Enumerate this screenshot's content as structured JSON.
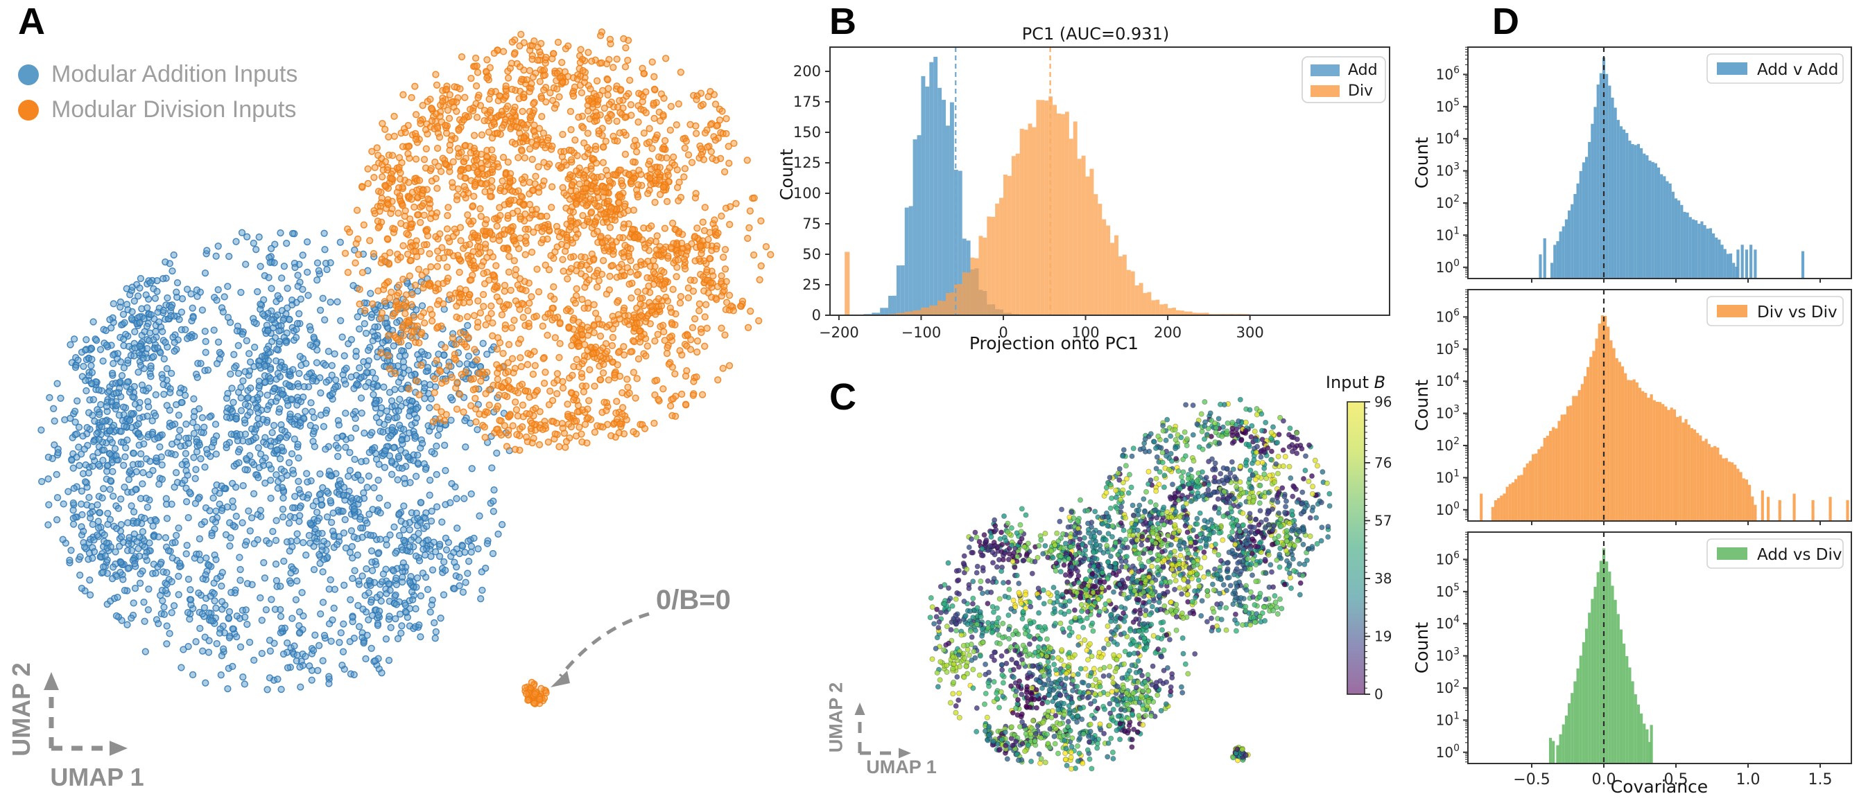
{
  "chart_data": [
    {
      "id": "A",
      "panel_label": "A",
      "type": "scatter",
      "xlabel": "UMAP 1",
      "ylabel": "UMAP 2",
      "annotation": {
        "text": "0/B=0",
        "color": "#8C8C8C"
      },
      "legend": [
        {
          "label": "Modular Addition Inputs",
          "color": "#5B9BC8"
        },
        {
          "label": "Modular Division Inputs",
          "color": "#F5861F"
        }
      ],
      "series": [
        {
          "name": "Modular Addition Inputs",
          "fill": "#5B9BC8",
          "edge": "#2F77B5",
          "cx": 405,
          "cy": 668,
          "r": 338,
          "n": 2300,
          "clumps": 95,
          "sigma": 26,
          "seed": 11
        },
        {
          "name": "Modular Division Inputs",
          "fill": "#F99433",
          "edge": "#ED7D12",
          "cx": 805,
          "cy": 348,
          "r": 308,
          "n": 2300,
          "clumps": 120,
          "sigma": 17,
          "seed": 22
        },
        {
          "name": "0/B=0 cluster",
          "fill": "#F99433",
          "edge": "#ED7D12",
          "cx": 772,
          "cy": 1000,
          "r": 17,
          "n": 55,
          "clumps": 3,
          "sigma": 6,
          "seed": 33
        }
      ]
    },
    {
      "id": "B",
      "panel_label": "B",
      "type": "histogram",
      "title": "PC1 (AUC=0.931)",
      "xlabel": "Projection onto PC1",
      "ylabel": "Count",
      "xlim": [
        -211,
        470
      ],
      "ylim": [
        0,
        220
      ],
      "xticks": [
        -200,
        -100,
        0,
        100,
        200,
        300
      ],
      "yticks": [
        0,
        25,
        50,
        75,
        100,
        125,
        150,
        175,
        200
      ],
      "bin_width": 10,
      "series": [
        {
          "name": "Add",
          "color": "#5C9DC9",
          "x_start": -170,
          "heights": [
            1,
            2,
            6,
            16,
            42,
            85,
            140,
            196,
            207,
            186,
            165,
            118,
            62,
            38,
            20,
            9,
            5,
            2,
            1
          ]
        },
        {
          "name": "Div",
          "color": "#F9A04C",
          "x_start": -140,
          "heights": [
            1,
            2,
            3,
            4,
            6,
            8,
            12,
            18,
            25,
            35,
            48,
            62,
            78,
            95,
            112,
            128,
            145,
            158,
            168,
            176,
            172,
            165,
            152,
            135,
            115,
            95,
            78,
            62,
            48,
            36,
            26,
            18,
            13,
            9,
            6,
            4,
            3,
            2,
            2,
            1,
            1,
            1,
            1,
            1
          ],
          "spike": {
            "x": -190,
            "height": 52,
            "width": 6
          }
        }
      ],
      "vlines": [
        {
          "x": -58,
          "color": "#6FA8D2"
        },
        {
          "x": 57,
          "color": "#FBAD63"
        }
      ]
    },
    {
      "id": "C",
      "panel_label": "C",
      "type": "scatter",
      "xlabel": "UMAP 1",
      "ylabel": "UMAP 2",
      "colorbar": {
        "title_prefix": "Input ",
        "title_var": "B",
        "vmin": 0,
        "vmax": 96,
        "ticks": [
          96,
          76,
          57,
          38,
          19,
          0
        ],
        "gradient_bottom_to_top": [
          "#9C6CA1",
          "#8E8FB9",
          "#7FB8BC",
          "#82C7AD",
          "#A8D999",
          "#D8E983",
          "#F4EE7E"
        ]
      },
      "clusters": [
        {
          "cx": 382,
          "cy": 375,
          "r": 195,
          "n": 1750,
          "clumps": 85,
          "sigma": 13,
          "seed": 44
        },
        {
          "cx": 607,
          "cy": 205,
          "r": 168,
          "n": 1350,
          "clumps": 72,
          "sigma": 12,
          "seed": 55
        },
        {
          "cx": 638,
          "cy": 548,
          "r": 13,
          "n": 40,
          "clumps": 3,
          "sigma": 5,
          "seed": 66
        }
      ]
    },
    {
      "id": "D",
      "panel_label": "D",
      "type": "histogram_log_stack",
      "xlabel": "Covariance",
      "ylabel": "Count",
      "xticks": [
        -0.5,
        0.0,
        0.5,
        1.0,
        1.5
      ],
      "ytick_exponents": [
        0,
        1,
        2,
        3,
        4,
        5,
        6
      ],
      "xlim": [
        -0.94,
        1.72
      ],
      "ylog_lim": [
        -0.35,
        6.85
      ],
      "bin_width": 0.02,
      "vline_x": 0,
      "subplots": [
        {
          "name": "Add v Add",
          "color": "#5C9DC9",
          "segments": [
            [
              -0.37,
              0.05
            ],
            [
              -0.33,
              0.8
            ],
            [
              -0.25,
              1.6
            ],
            [
              -0.18,
              2.6
            ],
            [
              -0.1,
              3.8
            ],
            [
              -0.04,
              5.6
            ],
            [
              0,
              6.5
            ],
            [
              0.04,
              5.6
            ],
            [
              0.1,
              4.6
            ],
            [
              0.2,
              3.9
            ],
            [
              0.3,
              3.5
            ],
            [
              0.45,
              2.6
            ],
            [
              0.55,
              1.8
            ],
            [
              0.7,
              1.3
            ],
            [
              0.8,
              0.9
            ],
            [
              0.92,
              0.1
            ]
          ],
          "spikes": [
            [
              -0.44,
              0.4
            ],
            [
              -0.41,
              0.9
            ],
            [
              0.93,
              0.55
            ],
            [
              0.96,
              0.7
            ],
            [
              0.99,
              0.55
            ],
            [
              1.02,
              0.7
            ],
            [
              1.05,
              0.55
            ],
            [
              1.38,
              0.5
            ]
          ]
        },
        {
          "name": "Div vs Div",
          "color": "#F9A04C",
          "segments": [
            [
              -0.78,
              0.1
            ],
            [
              -0.6,
              1.0
            ],
            [
              -0.45,
              1.9
            ],
            [
              -0.3,
              2.8
            ],
            [
              -0.15,
              3.9
            ],
            [
              -0.05,
              5.3
            ],
            [
              0,
              6.3
            ],
            [
              0.05,
              5.2
            ],
            [
              0.15,
              4.2
            ],
            [
              0.3,
              3.6
            ],
            [
              0.5,
              3.0
            ],
            [
              0.7,
              2.2
            ],
            [
              0.9,
              1.4
            ],
            [
              1.0,
              0.9
            ],
            [
              1.05,
              0.2
            ]
          ],
          "spikes": [
            [
              -0.85,
              0.5
            ],
            [
              1.1,
              0.6
            ],
            [
              1.14,
              0.4
            ],
            [
              1.22,
              0.3
            ],
            [
              1.32,
              0.5
            ],
            [
              1.45,
              0.3
            ],
            [
              1.57,
              0.4
            ],
            [
              1.69,
              0.3
            ]
          ]
        },
        {
          "name": "Add vs Div",
          "color": "#6CBC6C",
          "segments": [
            [
              -0.33,
              0.1
            ],
            [
              -0.3,
              0.6
            ],
            [
              -0.25,
              1.3
            ],
            [
              -0.2,
              2.2
            ],
            [
              -0.15,
              3.2
            ],
            [
              -0.1,
              4.3
            ],
            [
              -0.05,
              5.4
            ],
            [
              0,
              6.3
            ],
            [
              0.05,
              5.4
            ],
            [
              0.1,
              4.3
            ],
            [
              0.15,
              3.2
            ],
            [
              0.2,
              2.2
            ],
            [
              0.25,
              1.3
            ],
            [
              0.3,
              0.7
            ],
            [
              0.33,
              0.2
            ]
          ],
          "spikes": [
            [
              -0.37,
              0.45
            ],
            [
              -0.35,
              0.35
            ],
            [
              0.33,
              0.85
            ]
          ]
        }
      ]
    }
  ],
  "colors": {
    "spine": "#333333",
    "tick_text": "#262626",
    "gray_annotation": "#8C8C8C",
    "legend_border": "#D4D4D4"
  }
}
